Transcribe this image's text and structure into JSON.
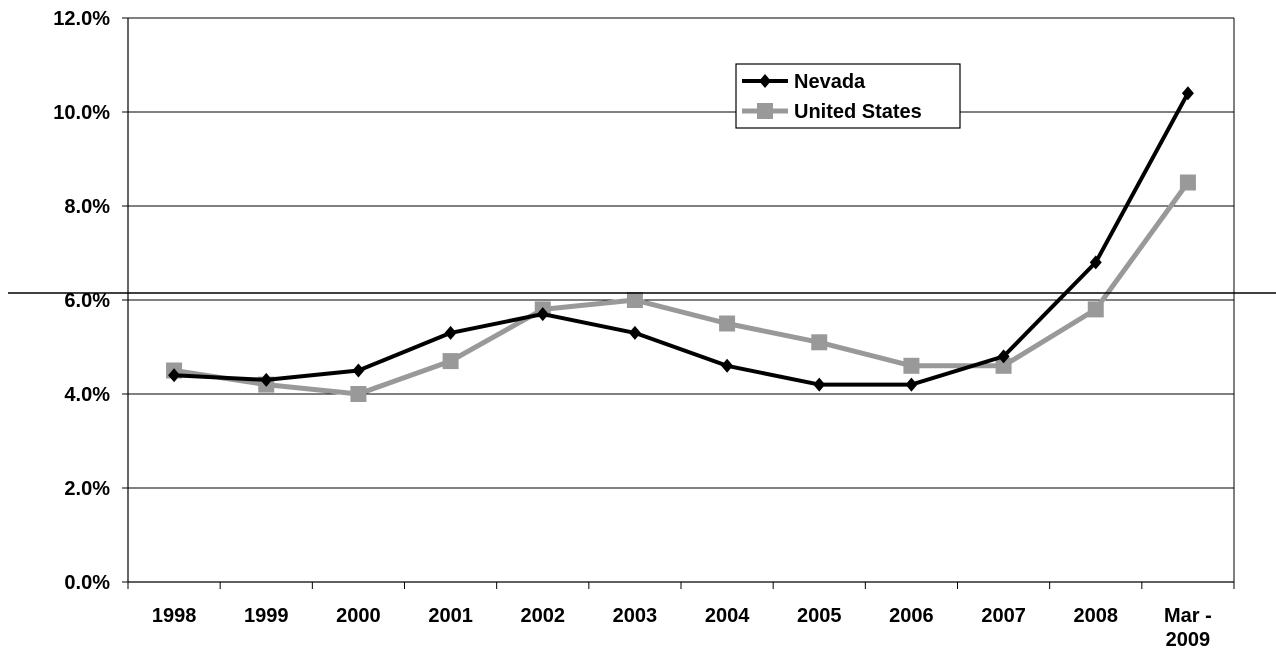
{
  "chart_data": {
    "type": "line",
    "title": "",
    "xlabel": "",
    "ylabel": "",
    "categories": [
      "1998",
      "1999",
      "2000",
      "2001",
      "2002",
      "2003",
      "2004",
      "2005",
      "2006",
      "2007",
      "2008",
      "Mar - 2009"
    ],
    "ylim": [
      0,
      12
    ],
    "yticks": [
      "0.0%",
      "2.0%",
      "4.0%",
      "6.0%",
      "8.0%",
      "10.0%",
      "12.0%"
    ],
    "ytick_values": [
      0,
      2,
      4,
      6,
      8,
      10,
      12
    ],
    "grid": true,
    "legend_position": "top-right",
    "series": [
      {
        "name": "Nevada",
        "color": "#000000",
        "marker": "diamond",
        "values": [
          4.4,
          4.3,
          4.5,
          5.3,
          5.7,
          5.3,
          4.6,
          4.2,
          4.2,
          4.8,
          6.8,
          10.4
        ]
      },
      {
        "name": "United States",
        "color": "#999999",
        "marker": "square",
        "values": [
          4.5,
          4.2,
          4.0,
          4.7,
          5.8,
          6.0,
          5.5,
          5.1,
          4.6,
          4.6,
          5.8,
          8.5
        ]
      }
    ]
  }
}
